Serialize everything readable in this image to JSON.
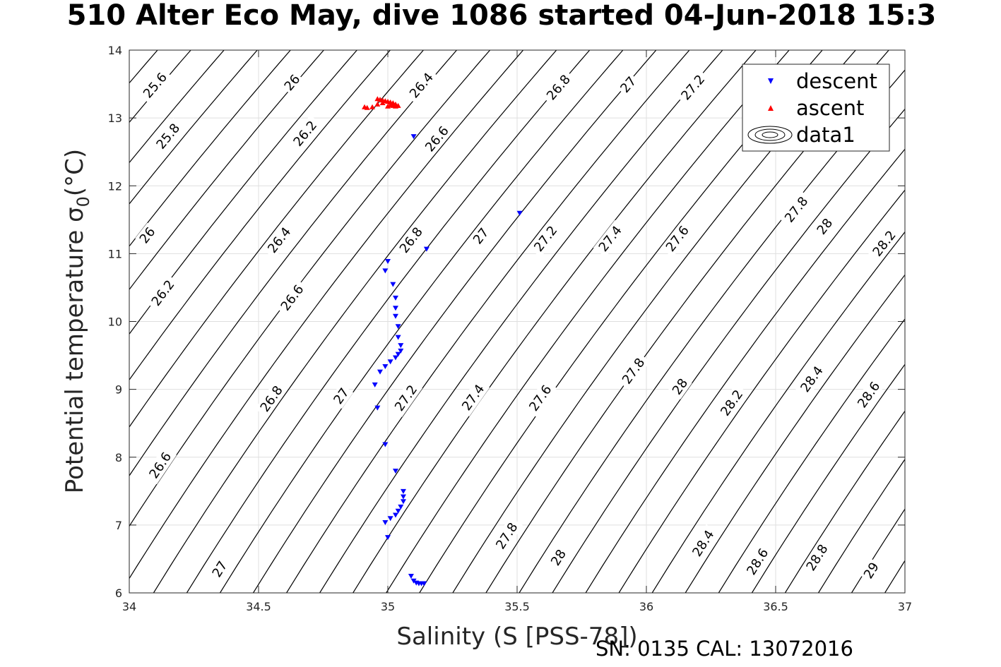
{
  "chart_data": {
    "type": "scatter",
    "title": "510 Alter Eco May, dive 1086 started 04-Jun-2018 15:3",
    "xlabel": "Salinity (S [PSS-78])",
    "ylabel": "Potential temperature",
    "ylabel_symbol": "σ",
    "ylabel_subscript": "0",
    "ylabel_unit": "(°C)",
    "xlim": [
      34,
      37
    ],
    "ylim": [
      6,
      14
    ],
    "xticks": [
      "34",
      "34.5",
      "35",
      "35.5",
      "36",
      "36.5",
      "37"
    ],
    "yticks": [
      "6",
      "7",
      "8",
      "9",
      "10",
      "11",
      "12",
      "13",
      "14"
    ],
    "grid": true,
    "legend_position": "top-right",
    "legend": [
      "descent",
      "ascent",
      "data1"
    ],
    "footer": "SN: 0135  CAL: 13072016",
    "colors": {
      "descent": "#0000ff",
      "ascent": "#ff0000",
      "contour": "#000000",
      "grid": "#dfdfdf"
    },
    "series": [
      {
        "name": "descent",
        "marker": "triangle-down",
        "points": [
          [
            35.1,
            12.73
          ],
          [
            35.51,
            11.6
          ],
          [
            35.15,
            11.07
          ],
          [
            35.0,
            10.89
          ],
          [
            34.99,
            10.75
          ],
          [
            35.02,
            10.55
          ],
          [
            35.03,
            10.35
          ],
          [
            35.03,
            10.2
          ],
          [
            35.03,
            10.08
          ],
          [
            35.04,
            9.93
          ],
          [
            35.04,
            9.77
          ],
          [
            35.05,
            9.65
          ],
          [
            35.05,
            9.57
          ],
          [
            35.04,
            9.52
          ],
          [
            35.03,
            9.47
          ],
          [
            35.01,
            9.41
          ],
          [
            34.99,
            9.34
          ],
          [
            34.97,
            9.26
          ],
          [
            34.95,
            9.07
          ],
          [
            34.96,
            8.73
          ],
          [
            34.99,
            8.19
          ],
          [
            35.03,
            7.8
          ],
          [
            35.06,
            7.5
          ],
          [
            35.06,
            7.42
          ],
          [
            35.06,
            7.35
          ],
          [
            35.05,
            7.27
          ],
          [
            35.04,
            7.21
          ],
          [
            35.03,
            7.15
          ],
          [
            35.01,
            7.1
          ],
          [
            34.99,
            7.04
          ],
          [
            35.0,
            6.82
          ],
          [
            35.09,
            6.25
          ],
          [
            35.1,
            6.18
          ],
          [
            35.11,
            6.15
          ],
          [
            35.12,
            6.14
          ],
          [
            35.13,
            6.14
          ],
          [
            35.14,
            6.14
          ]
        ]
      },
      {
        "name": "ascent",
        "marker": "triangle-up",
        "points": [
          [
            34.91,
            13.16
          ],
          [
            34.92,
            13.15
          ],
          [
            34.94,
            13.16
          ],
          [
            34.96,
            13.2
          ],
          [
            34.98,
            13.22
          ],
          [
            34.96,
            13.28
          ],
          [
            34.97,
            13.27
          ],
          [
            34.98,
            13.26
          ],
          [
            34.99,
            13.25
          ],
          [
            35.0,
            13.24
          ],
          [
            35.01,
            13.23
          ],
          [
            35.02,
            13.22
          ],
          [
            35.03,
            13.2
          ],
          [
            35.02,
            13.18
          ],
          [
            35.0,
            13.17
          ],
          [
            35.01,
            13.19
          ],
          [
            35.03,
            13.17
          ],
          [
            35.04,
            13.18
          ]
        ]
      }
    ],
    "contour_levels": [
      "25.6",
      "25.8",
      "26",
      "26.2",
      "26.4",
      "26.6",
      "26.8",
      "27",
      "27.2",
      "27.4",
      "27.6",
      "27.8",
      "28",
      "28.2",
      "28.4",
      "28.6",
      "28.8",
      "29"
    ],
    "contour_labels": [
      {
        "text": "25.6",
        "s": 34.1,
        "t": 13.48
      },
      {
        "text": "26",
        "s": 34.63,
        "t": 13.52
      },
      {
        "text": "26.4",
        "s": 35.13,
        "t": 13.48
      },
      {
        "text": "26.8",
        "s": 35.66,
        "t": 13.45
      },
      {
        "text": "27",
        "s": 35.93,
        "t": 13.49
      },
      {
        "text": "27.2",
        "s": 36.18,
        "t": 13.45
      },
      {
        "text": "25.8",
        "s": 34.15,
        "t": 12.73
      },
      {
        "text": "26.2",
        "s": 34.68,
        "t": 12.77
      },
      {
        "text": "26.6",
        "s": 35.19,
        "t": 12.69
      },
      {
        "text": "26",
        "s": 34.07,
        "t": 11.27
      },
      {
        "text": "26.4",
        "s": 34.58,
        "t": 11.2
      },
      {
        "text": "26.8",
        "s": 35.09,
        "t": 11.2
      },
      {
        "text": "27",
        "s": 35.36,
        "t": 11.26
      },
      {
        "text": "27.2",
        "s": 35.61,
        "t": 11.22
      },
      {
        "text": "27.4",
        "s": 35.86,
        "t": 11.22
      },
      {
        "text": "27.6",
        "s": 36.12,
        "t": 11.22
      },
      {
        "text": "27.8",
        "s": 36.58,
        "t": 11.65
      },
      {
        "text": "28",
        "s": 36.69,
        "t": 11.4
      },
      {
        "text": "28.2",
        "s": 36.92,
        "t": 11.15
      },
      {
        "text": "26.2",
        "s": 34.13,
        "t": 10.42
      },
      {
        "text": "26.6",
        "s": 34.63,
        "t": 10.35
      },
      {
        "text": "27.8",
        "s": 35.95,
        "t": 9.27
      },
      {
        "text": "28",
        "s": 36.13,
        "t": 9.04
      },
      {
        "text": "28.4",
        "s": 36.64,
        "t": 9.15
      },
      {
        "text": "28.6",
        "s": 36.86,
        "t": 8.92
      },
      {
        "text": "26.8",
        "s": 34.55,
        "t": 8.86
      },
      {
        "text": "27",
        "s": 34.82,
        "t": 8.9
      },
      {
        "text": "27.2",
        "s": 35.07,
        "t": 8.87
      },
      {
        "text": "27.4",
        "s": 35.33,
        "t": 8.88
      },
      {
        "text": "27.6",
        "s": 35.59,
        "t": 8.87
      },
      {
        "text": "28.2",
        "s": 36.33,
        "t": 8.8
      },
      {
        "text": "26.6",
        "s": 34.12,
        "t": 7.88
      },
      {
        "text": "27.8",
        "s": 35.46,
        "t": 6.84
      },
      {
        "text": "28",
        "s": 35.66,
        "t": 6.52
      },
      {
        "text": "28.4",
        "s": 36.22,
        "t": 6.73
      },
      {
        "text": "28.6",
        "s": 36.43,
        "t": 6.46
      },
      {
        "text": "28.8",
        "s": 36.66,
        "t": 6.52
      },
      {
        "text": "27",
        "s": 34.35,
        "t": 6.35
      },
      {
        "text": "29",
        "s": 36.87,
        "t": 6.33
      }
    ]
  }
}
